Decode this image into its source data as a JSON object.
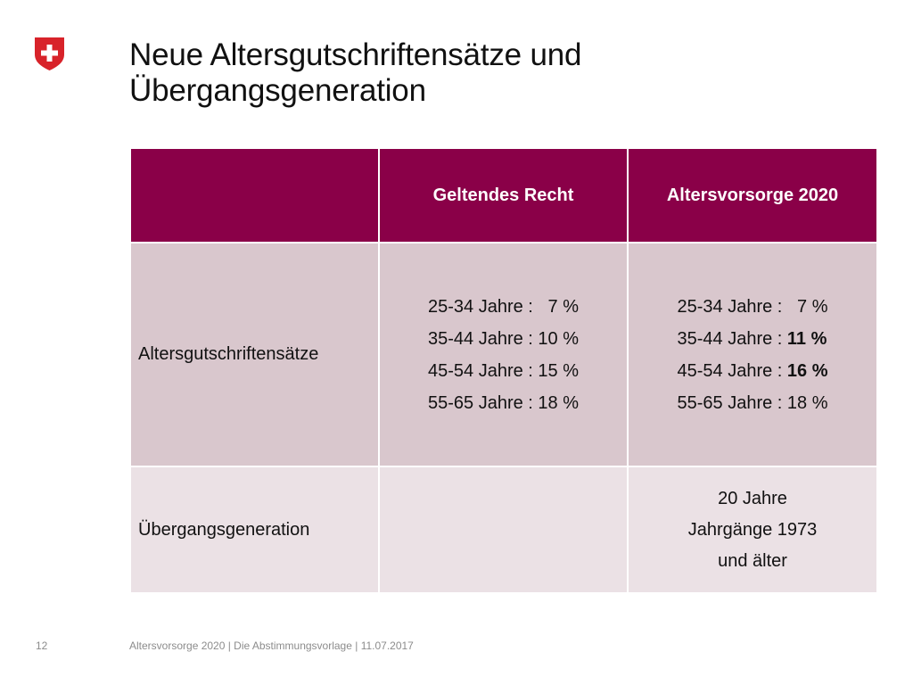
{
  "logo": {
    "icon": "swiss-cross-icon",
    "color": "#d8232a"
  },
  "title": {
    "line1": "Neue Altersgutschriftensätze und",
    "line2": "Übergangsgeneration"
  },
  "table": {
    "header": [
      "",
      "Geltendes Recht",
      "Altersvorsorge 2020"
    ],
    "header_color": "#8a0048",
    "rows": [
      {
        "label": "Altersgutschriftensätze",
        "current": [
          "25-34 Jahre :   7 %",
          "35-44 Jahre : 10 %",
          "45-54 Jahre : 15 %",
          "55-65 Jahre : 18 %"
        ],
        "reform": [
          {
            "prefix": "25-34 Jahre :   ",
            "value": "7 %",
            "bold": false
          },
          {
            "prefix": "35-44 Jahre : ",
            "value": "11 %",
            "bold": true
          },
          {
            "prefix": "45-54 Jahre : ",
            "value": "16 %",
            "bold": true
          },
          {
            "prefix": "55-65 Jahre : ",
            "value": "18 %",
            "bold": false
          }
        ]
      },
      {
        "label": "Übergangsgeneration",
        "current": "",
        "reform": [
          "20 Jahre",
          "Jahrgänge 1973",
          "und älter"
        ]
      }
    ]
  },
  "footer": {
    "page_number": "12",
    "text": "Altersvorsorge 2020 | Die Abstimmungsvorlage | 11.07.2017"
  }
}
